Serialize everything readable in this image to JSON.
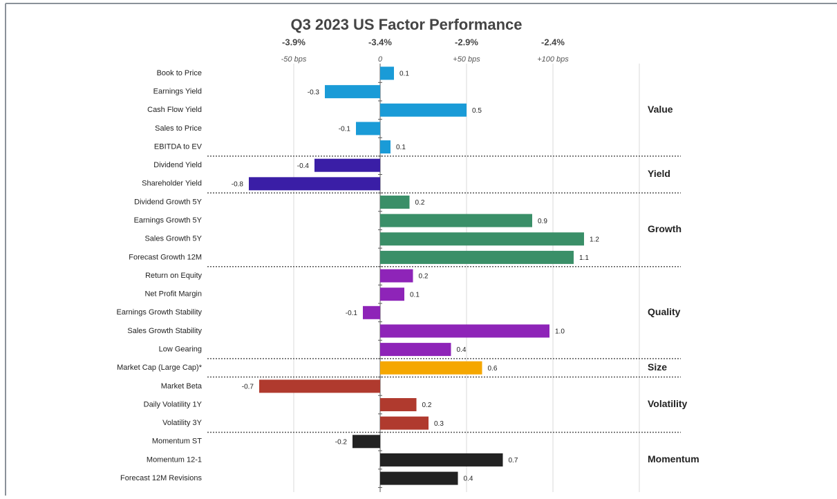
{
  "chart_data": {
    "type": "bar",
    "orientation": "horizontal",
    "title": "Q3 2023 US Factor Performance",
    "xlim": [
      -98,
      150
    ],
    "xticks": [
      {
        "value": -50,
        "label": "-50 bps"
      },
      0,
      {
        "value": 50,
        "label": "+50 bps"
      },
      {
        "value": 100,
        "label": "+100 bps"
      }
    ],
    "top_ticks": [
      {
        "value": -50,
        "label": "-3.9%"
      },
      {
        "value": 0,
        "label": "-3.4%"
      },
      {
        "value": 50,
        "label": "-2.9%"
      },
      {
        "value": 100,
        "label": "-2.4%"
      }
    ],
    "grid": true,
    "series": [
      {
        "name": "Value",
        "color": "#1a9bd7",
        "categories": [
          "Book to Price",
          "Earnings Yield",
          "Cash Flow Yield",
          "Sales to Price",
          "EBITDA to EV"
        ],
        "values": [
          8,
          -32,
          50,
          -14,
          6
        ],
        "value_labels": [
          "0.1",
          "-0.3",
          "0.5",
          "-0.1",
          "0.1"
        ]
      },
      {
        "name": "Yield",
        "color": "#3a1ea6",
        "categories": [
          "Dividend Yield",
          "Shareholder Yield"
        ],
        "values": [
          -38,
          -76
        ],
        "value_labels": [
          "-0.4",
          "-0.8"
        ]
      },
      {
        "name": "Growth",
        "color": "#3a8f68",
        "categories": [
          "Dividend Growth 5Y",
          "Earnings Growth 5Y",
          "Sales Growth 5Y",
          "Forecast Growth 12M"
        ],
        "values": [
          17,
          88,
          118,
          112
        ],
        "value_labels": [
          "0.2",
          "0.9",
          "1.2",
          "1.1"
        ]
      },
      {
        "name": "Quality",
        "color": "#8e24b8",
        "categories": [
          "Return on Equity",
          "Net Profit Margin",
          "Earnings Growth Stability",
          "Sales Growth Stability",
          "Low Gearing"
        ],
        "values": [
          19,
          14,
          -10,
          98,
          41
        ],
        "value_labels": [
          "0.2",
          "0.1",
          "-0.1",
          "1.0",
          "0.4"
        ]
      },
      {
        "name": "Size",
        "color": "#f5a700",
        "categories": [
          "Market Cap (Large Cap)*"
        ],
        "values": [
          59
        ],
        "value_labels": [
          "0.6"
        ]
      },
      {
        "name": "Volatility",
        "color": "#b03a2e",
        "categories": [
          "Market Beta",
          "Daily Volatility 1Y",
          "Volatility 3Y"
        ],
        "values": [
          -70,
          21,
          28
        ],
        "value_labels": [
          "-0.7",
          "0.2",
          "0.3"
        ]
      },
      {
        "name": "Momentum",
        "color": "#222222",
        "categories": [
          "Momentum ST",
          "Momentum 12-1",
          "Forecast 12M Revisions"
        ],
        "values": [
          -16,
          71,
          45
        ],
        "value_labels": [
          "-0.2",
          "0.7",
          "0.4"
        ]
      }
    ]
  }
}
